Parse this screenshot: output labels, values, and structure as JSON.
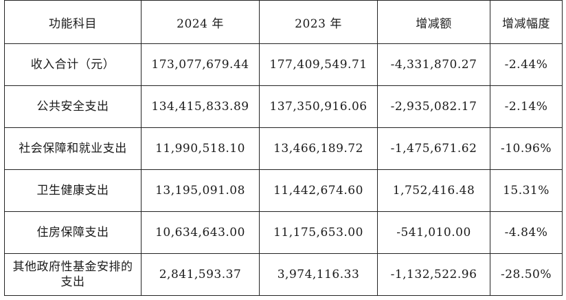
{
  "table": {
    "headers": [
      "功能科目",
      "2024 年",
      "2023 年",
      "增减额",
      "增减幅度"
    ],
    "rows": [
      [
        "收入合计（元）",
        "173,077,679.44",
        "177,409,549.71",
        "-4,331,870.27",
        "-2.44%"
      ],
      [
        "公共安全支出",
        "134,415,833.89",
        "137,350,916.06",
        "-2,935,082.17",
        "-2.14%"
      ],
      [
        "社会保障和就业支出",
        "11,990,518.10",
        "13,466,189.72",
        "-1,475,671.62",
        "-10.96%"
      ],
      [
        "卫生健康支出",
        "13,195,091.08",
        "11,442,674.60",
        "1,752,416.48",
        "15.31%"
      ],
      [
        "住房保障支出",
        "10,634,643.00",
        "11,175,653.00",
        "-541,010.00",
        "-4.84%"
      ],
      [
        "其他政府性基金安排的支出",
        "2,841,593.37",
        "3,974,116.33",
        "-1,132,522.96",
        "-28.50%"
      ]
    ]
  }
}
